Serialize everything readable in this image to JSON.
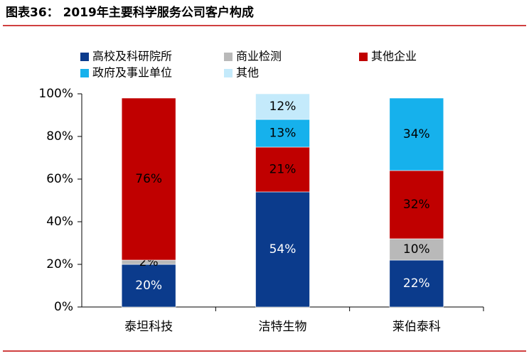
{
  "chart_data": {
    "type": "stacked_bar",
    "title": "图表36： 2019年主要科学服务公司客户构成",
    "categories": [
      "泰坦科技",
      "洁特生物",
      "莱伯泰科"
    ],
    "series": [
      {
        "name": "高校及科研院所",
        "color": "#0b3b8c",
        "label_color": "#ffffff",
        "values": [
          20,
          54,
          22
        ],
        "value_labels": [
          "20%",
          "54%",
          "22%"
        ]
      },
      {
        "name": "商业检测",
        "color": "#b9b9b9",
        "label_color": "#000000",
        "values": [
          2,
          null,
          10
        ],
        "value_labels": [
          "2%",
          null,
          "10%"
        ]
      },
      {
        "name": "其他企业",
        "color": "#c00000",
        "label_color": "#000000",
        "values": [
          76,
          21,
          32
        ],
        "value_labels": [
          "76%",
          "21%",
          "32%"
        ]
      },
      {
        "name": "政府及事业单位",
        "color": "#16b1ec",
        "label_color": "#000000",
        "values": [
          null,
          13,
          34
        ],
        "value_labels": [
          null,
          "13%",
          "34%"
        ]
      },
      {
        "name": "其他",
        "color": "#c4eafb",
        "label_color": "#000000",
        "values": [
          null,
          12,
          null
        ],
        "value_labels": [
          null,
          "12%",
          null
        ]
      }
    ],
    "ylim": [
      0,
      100
    ],
    "yticks": [
      {
        "value": 0,
        "label": "0%"
      },
      {
        "value": 20,
        "label": "20%"
      },
      {
        "value": 40,
        "label": "40%"
      },
      {
        "value": 60,
        "label": "60%"
      },
      {
        "value": 80,
        "label": "80%"
      },
      {
        "value": 100,
        "label": "100%"
      }
    ]
  }
}
